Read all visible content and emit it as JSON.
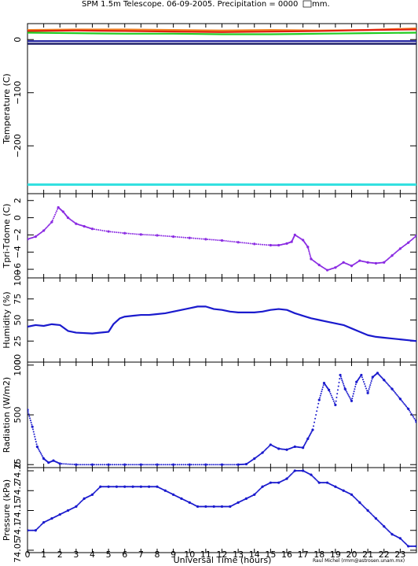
{
  "title": "SPM 1.5m Telescope. 06-09-2005. Precipitation = 0000",
  "title_suffix": " mm.",
  "xlabel": "Universal Time (hours)",
  "credit": "Raul Michel (rmm@astrosen.unam.mx)",
  "colors": {
    "frame": "#000000",
    "purple": "#8a2be2",
    "blue": "#1a1acd",
    "orange": "#f08020",
    "red": "#e02010",
    "green": "#22cc22",
    "cyan": "#33e0e0",
    "navy": "#101060",
    "darkblue": "#2020a0"
  },
  "xaxis": {
    "range": [
      0,
      24
    ],
    "tick_labels": [
      "0",
      "1",
      "2",
      "3",
      "4",
      "5",
      "6",
      "7",
      "8",
      "9",
      "10",
      "11",
      "12",
      "13",
      "14",
      "15",
      "16",
      "17",
      "18",
      "19",
      "20",
      "21",
      "22",
      "23"
    ]
  },
  "chart_data": [
    {
      "type": "line",
      "ylabel": "Temperature (C)",
      "ylim": [
        -290,
        30
      ],
      "yticks": [
        0,
        -100,
        -200
      ],
      "ytick_labels": [
        "0",
        "−100",
        "−200"
      ],
      "series": [
        {
          "color": "orange",
          "x": [
            0,
            3,
            6,
            9,
            12,
            15,
            18,
            21,
            24
          ],
          "y": [
            18,
            19,
            19,
            18,
            17,
            18,
            17,
            18,
            21
          ]
        },
        {
          "color": "red",
          "x": [
            0,
            3,
            6,
            9,
            12,
            15,
            18,
            21,
            24
          ],
          "y": [
            16,
            17,
            16,
            15,
            14,
            15,
            16,
            18,
            19
          ]
        },
        {
          "color": "green",
          "x": [
            0,
            3,
            6,
            9,
            12,
            15,
            18,
            21,
            24
          ],
          "y": [
            13,
            12,
            11,
            11,
            10,
            10,
            11,
            12,
            13
          ]
        },
        {
          "color": "darkblue",
          "x": [
            0,
            6,
            12,
            18,
            24
          ],
          "y": [
            -3,
            -3,
            -3,
            -3,
            -3
          ]
        },
        {
          "color": "navy",
          "x": [
            0,
            24
          ],
          "y": [
            -8,
            -8
          ]
        },
        {
          "color": "cyan",
          "x": [
            0,
            24
          ],
          "y": [
            -273,
            -273
          ]
        }
      ]
    },
    {
      "type": "scatter",
      "ylabel": "Tpri-Tdome (C)",
      "ylim": [
        -7,
        2.8
      ],
      "yticks": [
        2,
        0,
        -2,
        -4,
        -6
      ],
      "ytick_labels": [
        "2",
        "0",
        "−2",
        "−4",
        "−6"
      ],
      "series": [
        {
          "color": "purple",
          "x": [
            0,
            0.5,
            1,
            1.5,
            1.9,
            2.2,
            2.5,
            3,
            3.5,
            4,
            5,
            6,
            7,
            8,
            9,
            10,
            11,
            12,
            13,
            14,
            15,
            15.5,
            16,
            16.3,
            16.5,
            17,
            17.3,
            17.5,
            18,
            18.5,
            19,
            19.5,
            20,
            20.5,
            21,
            21.5,
            22,
            22.5,
            23,
            23.5,
            24
          ],
          "y": [
            -2.5,
            -2.2,
            -1.5,
            -0.5,
            1.2,
            0.7,
            0,
            -0.7,
            -1.0,
            -1.3,
            -1.6,
            -1.8,
            -1.95,
            -2.05,
            -2.2,
            -2.35,
            -2.5,
            -2.65,
            -2.85,
            -3.05,
            -3.2,
            -3.2,
            -3.0,
            -2.8,
            -2.0,
            -2.6,
            -3.4,
            -4.8,
            -5.5,
            -6.1,
            -5.8,
            -5.2,
            -5.6,
            -5.0,
            -5.2,
            -5.3,
            -5.2,
            -4.4,
            -3.6,
            -2.9,
            -2.1
          ]
        }
      ]
    },
    {
      "type": "line",
      "ylabel": "Humidity (%)",
      "ylim": [
        0,
        100
      ],
      "yticks": [
        0,
        25,
        50,
        75,
        100
      ],
      "ytick_labels": [
        "0",
        "25",
        "50",
        "75",
        "100"
      ],
      "series": [
        {
          "color": "blue",
          "x": [
            0,
            0.5,
            1,
            1.5,
            2,
            2.5,
            3,
            4,
            5,
            5.3,
            5.7,
            6,
            6.5,
            7,
            7.5,
            8,
            8.5,
            9,
            9.5,
            10,
            10.5,
            11,
            11.5,
            12,
            12.5,
            13,
            13.5,
            14,
            14.5,
            15,
            15.5,
            16,
            16.5,
            17,
            17.5,
            18,
            18.5,
            19,
            19.5,
            20,
            20.5,
            21,
            21.5,
            22,
            22.5,
            23,
            23.5,
            24
          ],
          "y": [
            42,
            44,
            43,
            45,
            44,
            37,
            35,
            34,
            36,
            45,
            52,
            54,
            55,
            56,
            56,
            57,
            58,
            60,
            62,
            64,
            66,
            66,
            63,
            62,
            60,
            59,
            59,
            59,
            60,
            62,
            63,
            62,
            58,
            55,
            52,
            50,
            48,
            46,
            44,
            40,
            36,
            32,
            30,
            29,
            28,
            27,
            26,
            25
          ]
        }
      ]
    },
    {
      "type": "scatter",
      "ylabel": "Radiation (W/m2)",
      "ylim": [
        -30,
        1030
      ],
      "yticks": [
        0,
        500,
        1000
      ],
      "ytick_labels": [
        "0",
        "500",
        "1000"
      ],
      "series": [
        {
          "color": "blue",
          "x": [
            0,
            0.3,
            0.6,
            1,
            1.3,
            1.6,
            2,
            3,
            4,
            5,
            6,
            7,
            8,
            9,
            10,
            11,
            12,
            13,
            13.5,
            14,
            14.5,
            15,
            15.5,
            16,
            16.5,
            17,
            17.3,
            17.6,
            18,
            18.3,
            18.6,
            19,
            19.3,
            19.6,
            20,
            20.3,
            20.6,
            21,
            21.3,
            21.6,
            22,
            22.5,
            23,
            23.5,
            24
          ],
          "y": [
            550,
            380,
            180,
            60,
            20,
            40,
            10,
            0,
            0,
            0,
            0,
            0,
            0,
            0,
            0,
            0,
            0,
            0,
            5,
            60,
            120,
            200,
            160,
            150,
            180,
            170,
            260,
            350,
            650,
            820,
            750,
            600,
            900,
            760,
            640,
            830,
            900,
            720,
            880,
            920,
            850,
            760,
            660,
            560,
            430
          ]
        }
      ]
    },
    {
      "type": "scatter",
      "ylabel": "Pressure (kPa)",
      "ylim": [
        74.044,
        74.258
      ],
      "yticks": [
        74.05,
        74.1,
        74.15,
        74.2,
        74.25
      ],
      "ytick_labels": [
        "74.05",
        "74.1",
        "74.15",
        "74.2",
        "74.25"
      ],
      "series": [
        {
          "color": "blue",
          "x": [
            0,
            0.5,
            1,
            1.5,
            2,
            2.5,
            3,
            3.5,
            4,
            4.5,
            5,
            5.5,
            6,
            6.5,
            7,
            7.5,
            8,
            8.5,
            9,
            9.5,
            10,
            10.5,
            11,
            11.5,
            12,
            12.5,
            13,
            13.5,
            14,
            14.5,
            15,
            15.5,
            16,
            16.5,
            17,
            17.5,
            18,
            18.5,
            19,
            19.5,
            20,
            20.5,
            21,
            21.5,
            22,
            22.5,
            23,
            23.5,
            24
          ],
          "y": [
            74.1,
            74.1,
            74.12,
            74.13,
            74.14,
            74.15,
            74.16,
            74.18,
            74.19,
            74.21,
            74.21,
            74.21,
            74.21,
            74.21,
            74.21,
            74.21,
            74.21,
            74.2,
            74.19,
            74.18,
            74.17,
            74.16,
            74.16,
            74.16,
            74.16,
            74.16,
            74.17,
            74.18,
            74.19,
            74.21,
            74.22,
            74.22,
            74.23,
            74.25,
            74.25,
            74.24,
            74.22,
            74.22,
            74.21,
            74.2,
            74.19,
            74.17,
            74.15,
            74.13,
            74.11,
            74.09,
            74.08,
            74.06,
            74.06
          ]
        }
      ]
    }
  ]
}
